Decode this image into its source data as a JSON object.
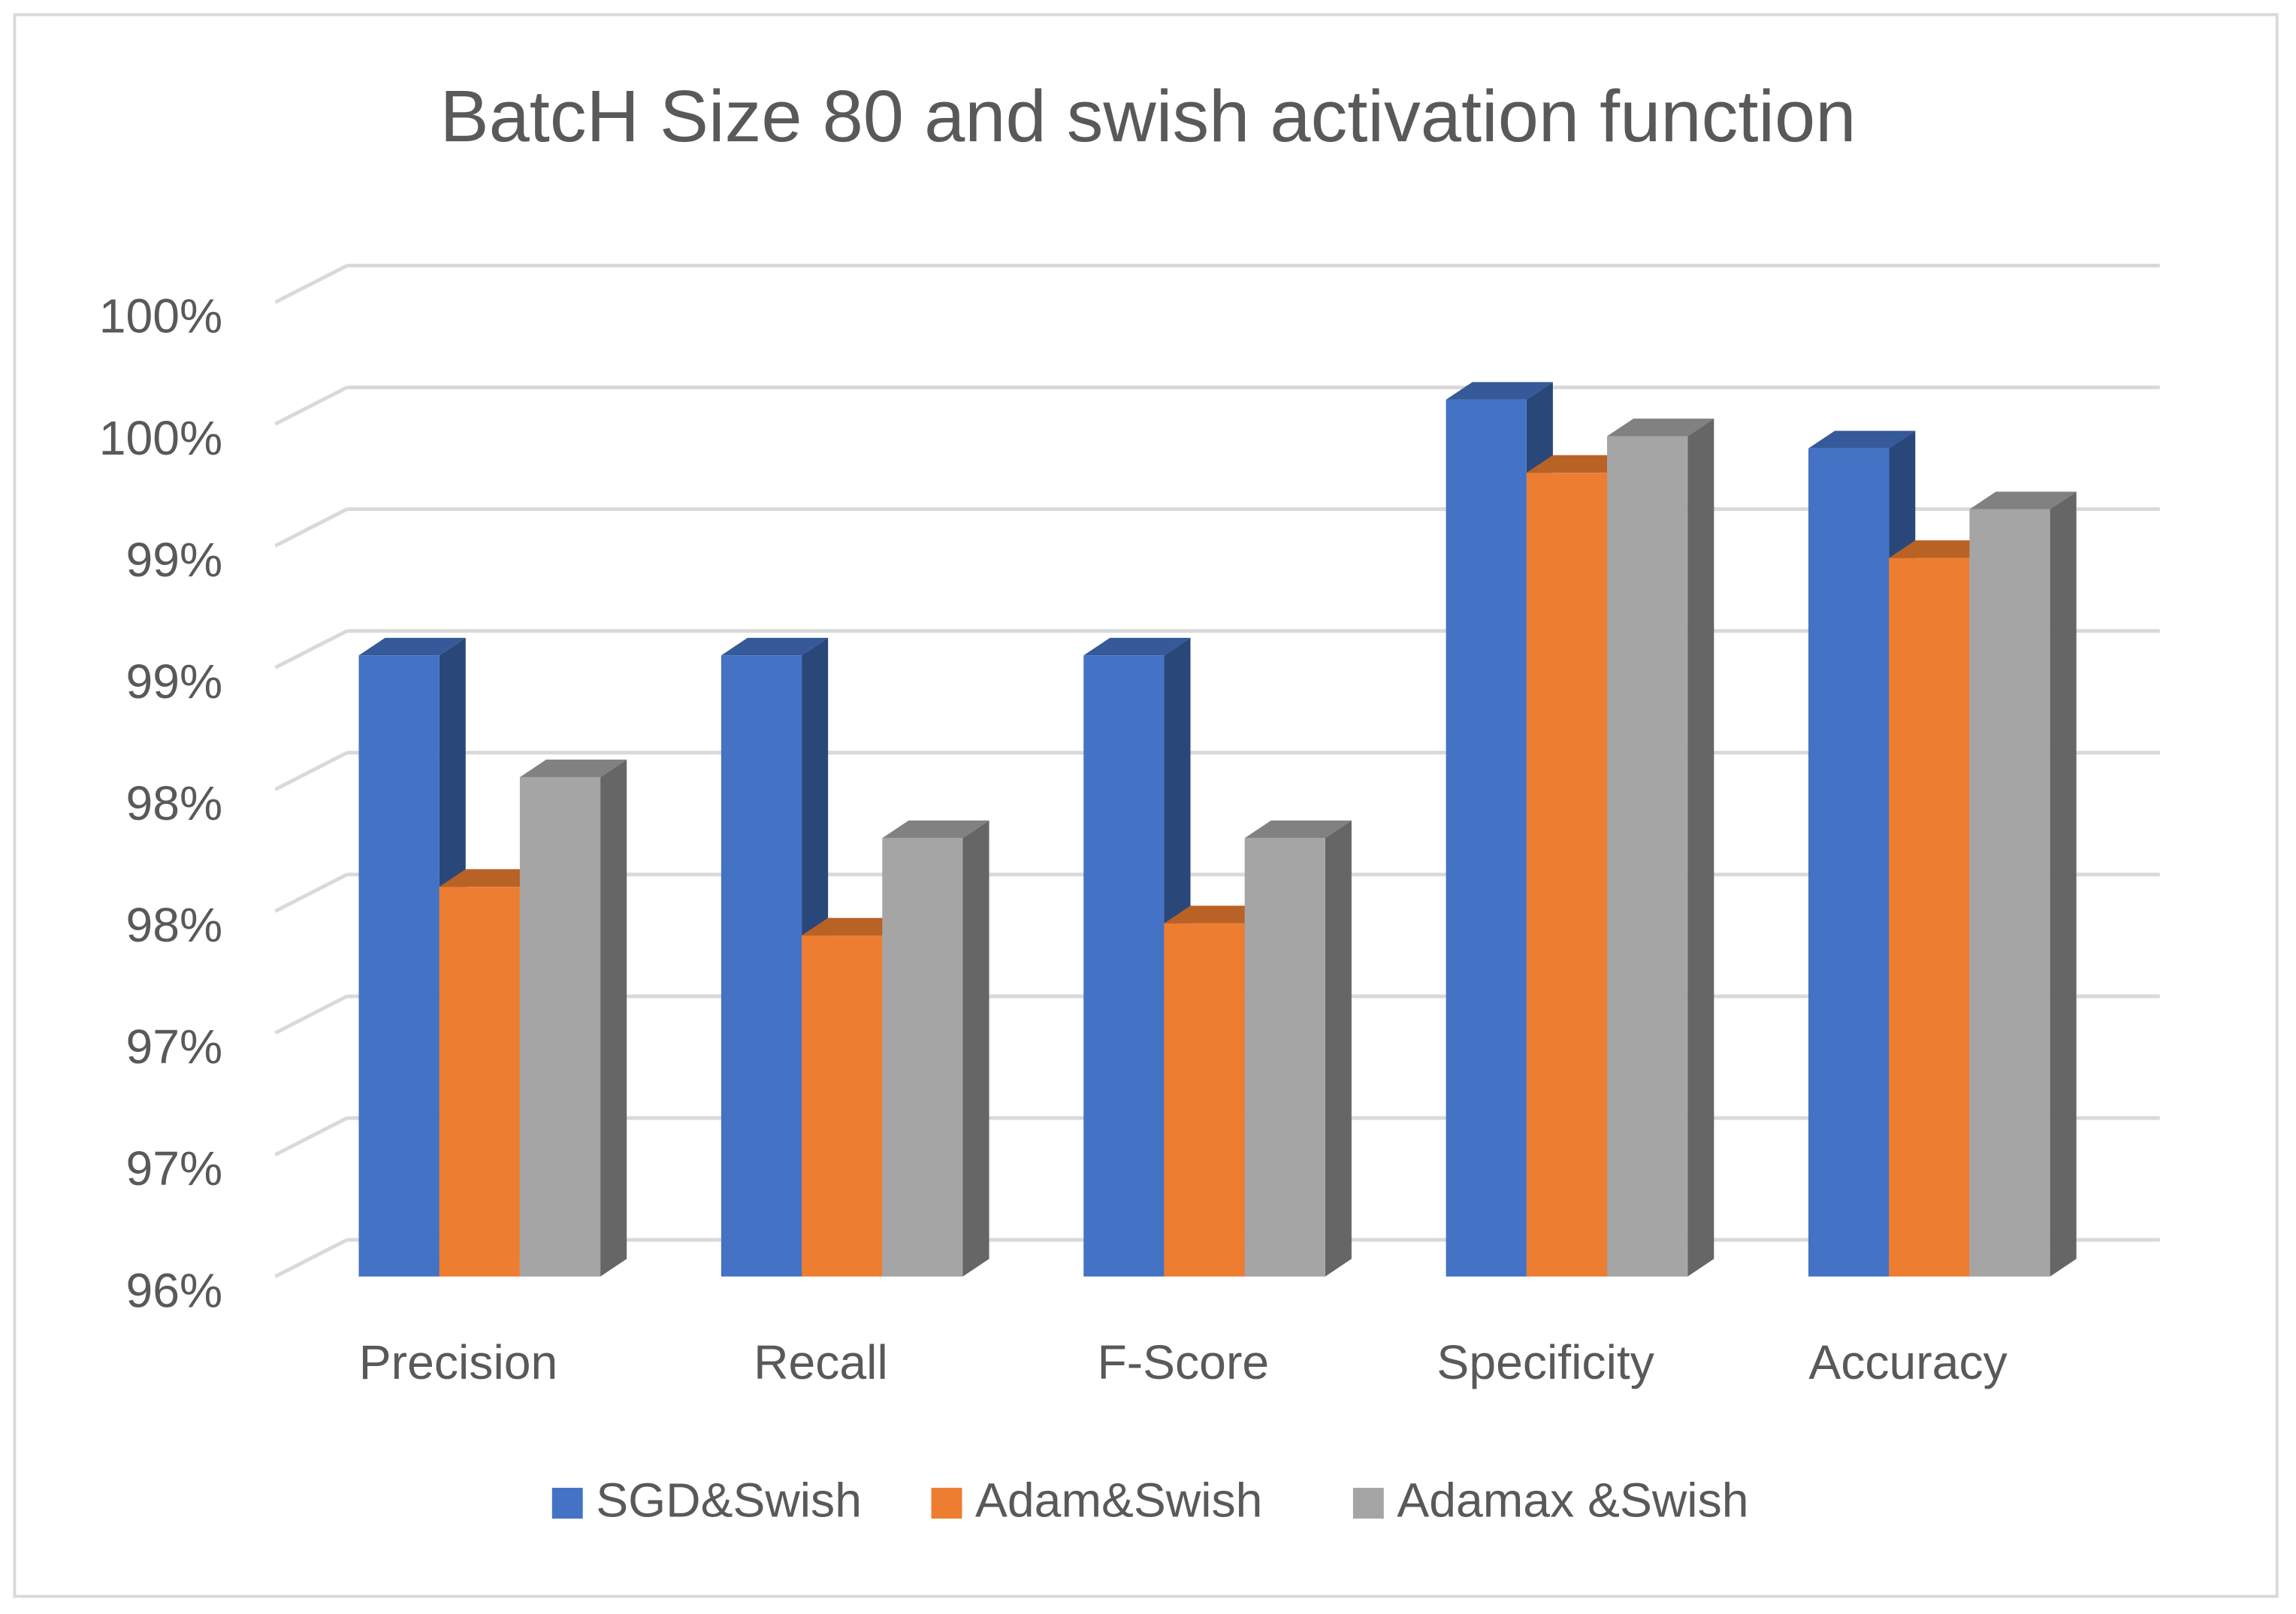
{
  "chart_data": {
    "type": "bar3d",
    "title": "BatcH Size 80 and swish activation function",
    "categories": [
      "Precision",
      "Recall",
      "F-Score",
      "Specificity",
      "Accuracy"
    ],
    "series": [
      {
        "name": "SGD&Swish",
        "color": "#4472c4",
        "values": [
          98.55,
          98.55,
          98.55,
          99.6,
          99.4
        ]
      },
      {
        "name": "Adam&Swish",
        "color": "#ed7d31",
        "values": [
          97.6,
          97.4,
          97.45,
          99.3,
          98.95
        ]
      },
      {
        "name": "Adamax &Swish",
        "color": "#a5a5a5",
        "values": [
          98.05,
          97.8,
          97.8,
          99.45,
          99.15
        ]
      }
    ],
    "ylim": [
      96,
      100
    ],
    "yticks": [
      {
        "value": 96,
        "label": "96%"
      },
      {
        "value": 96.5,
        "label": "97%"
      },
      {
        "value": 97,
        "label": "97%"
      },
      {
        "value": 97.5,
        "label": "98%"
      },
      {
        "value": 98,
        "label": "98%"
      },
      {
        "value": 98.5,
        "label": "99%"
      },
      {
        "value": 99,
        "label": "99%"
      },
      {
        "value": 99.5,
        "label": "100%"
      },
      {
        "value": 100,
        "label": "100%"
      }
    ],
    "grid": true,
    "legend": "bottom"
  }
}
